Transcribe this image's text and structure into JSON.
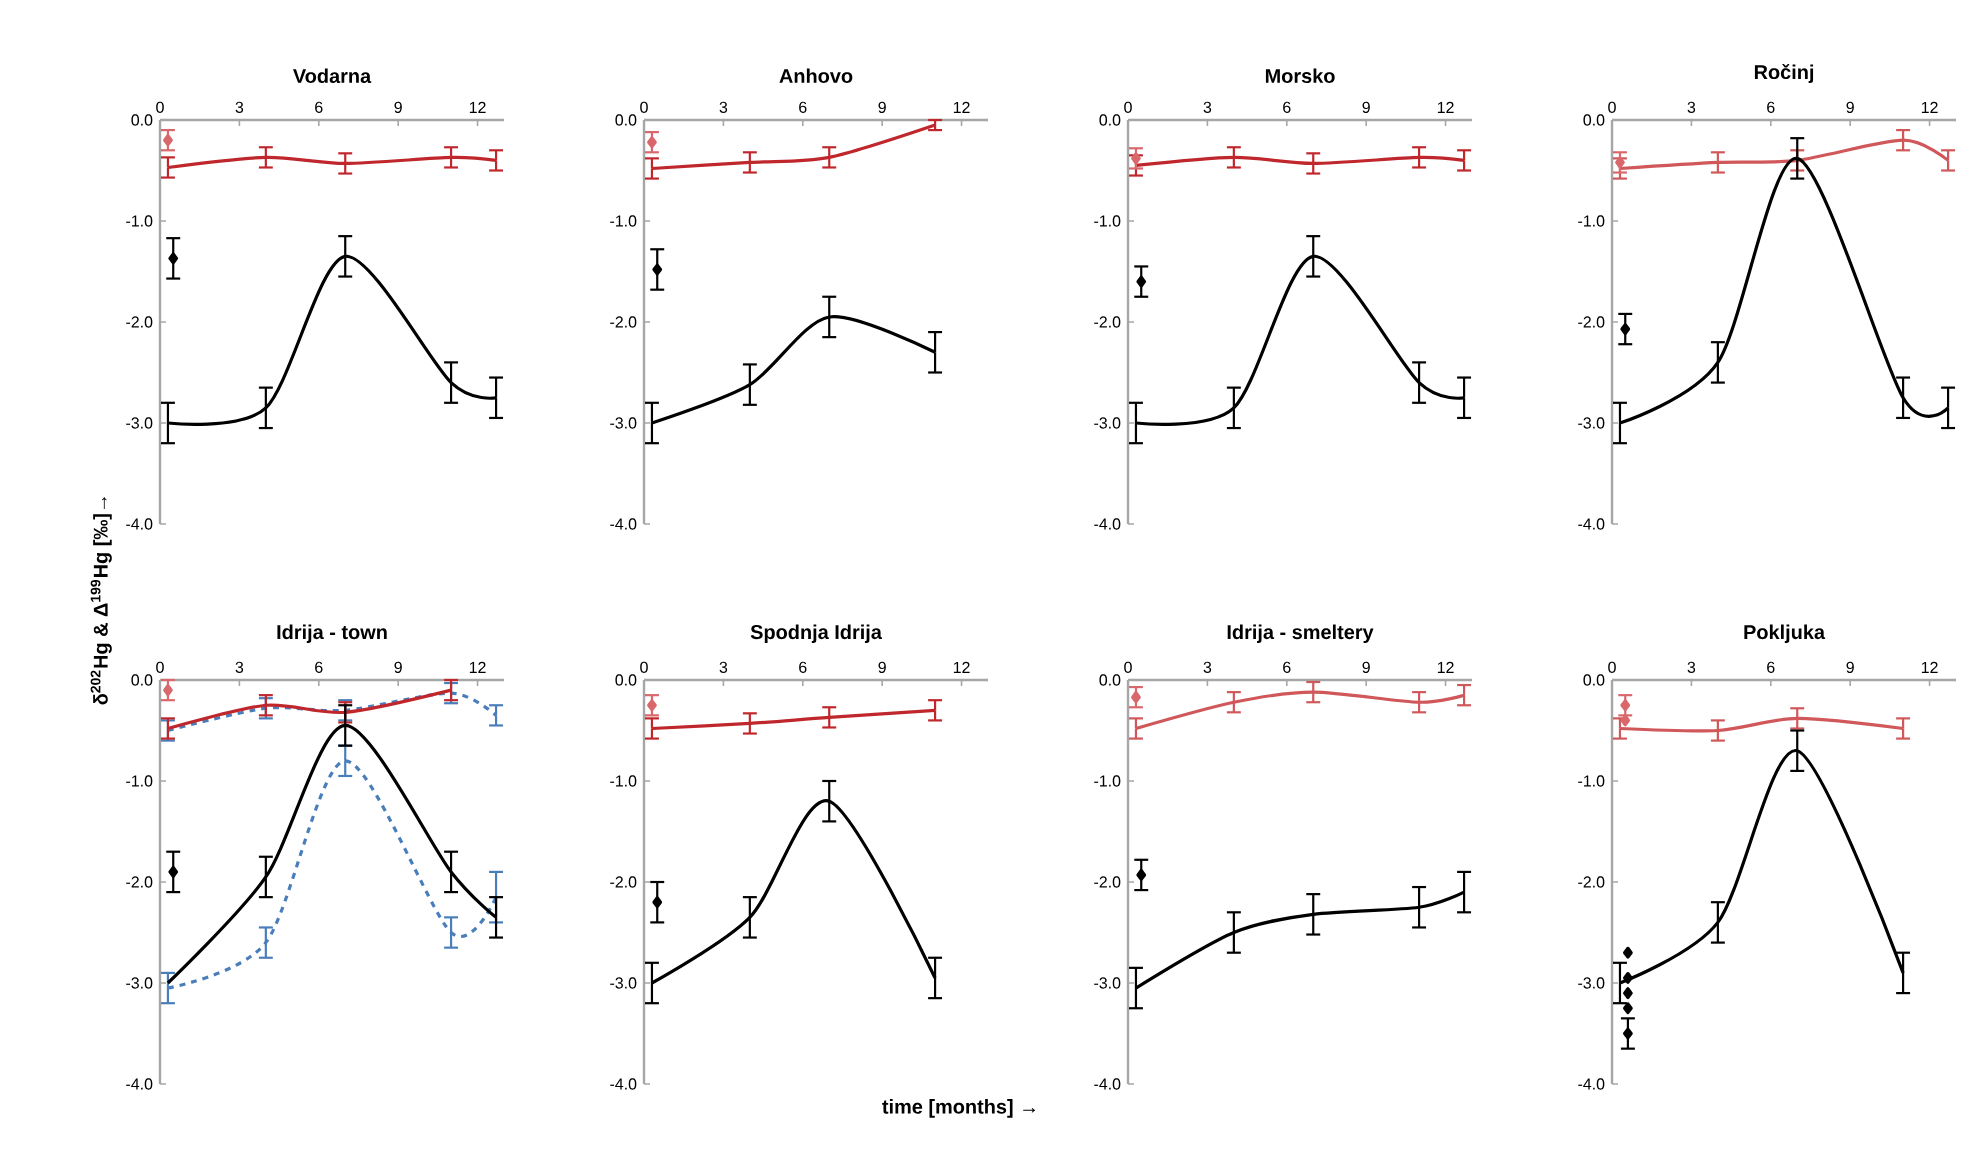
{
  "chart_data": [
    {
      "type": "line",
      "title": "Vodarna",
      "xlim": [
        0,
        13
      ],
      "ylim": [
        -4,
        0
      ],
      "xticks": [
        0,
        3,
        6,
        9,
        12
      ],
      "yticks": [
        {
          "value": 0,
          "label": "0.0"
        },
        {
          "value": -1,
          "label": "-1.0"
        },
        {
          "value": -2,
          "label": "-2.0"
        },
        {
          "value": -3,
          "label": "-3.0"
        },
        {
          "value": -4,
          "label": "-4.0"
        }
      ],
      "series": [
        {
          "type": "line",
          "color": "#c0272d",
          "x": [
            0.3,
            4,
            7,
            11,
            12.7
          ],
          "values": [
            -0.47,
            -0.37,
            -0.43,
            -0.37,
            -0.4
          ],
          "errors": [
            0.1,
            0.1,
            0.1,
            0.1,
            0.1
          ],
          "marker": "none",
          "line_style": "solid"
        },
        {
          "type": "line",
          "color": "#000000",
          "x": [
            0.3,
            4,
            7,
            11,
            12.7
          ],
          "values": [
            -3.0,
            -2.85,
            -1.35,
            -2.6,
            -2.75
          ],
          "errors": [
            0.2,
            0.2,
            0.2,
            0.2,
            0.2
          ],
          "marker": "none",
          "line_style": "solid"
        },
        {
          "type": "scatter",
          "color": "#d9686c",
          "x": [
            0.3
          ],
          "values": [
            -0.2
          ],
          "errors": [
            0.1
          ],
          "marker": "diamond"
        },
        {
          "type": "scatter",
          "color": "#000000",
          "x": [
            0.5
          ],
          "values": [
            -1.37
          ],
          "errors": [
            0.2
          ],
          "marker": "diamond"
        }
      ]
    },
    {
      "type": "line",
      "title": "Anhovo",
      "xlim": [
        0,
        13
      ],
      "ylim": [
        -4,
        0
      ],
      "xticks": [
        0,
        3,
        6,
        9,
        12
      ],
      "yticks": [
        {
          "value": 0,
          "label": "0.0"
        },
        {
          "value": -1,
          "label": "-1.0"
        },
        {
          "value": -2,
          "label": "-2.0"
        },
        {
          "value": -3,
          "label": "-3.0"
        },
        {
          "value": -4,
          "label": "-4.0"
        }
      ],
      "series": [
        {
          "type": "line",
          "color": "#c0272d",
          "x": [
            0.3,
            4,
            7,
            11
          ],
          "values": [
            -0.48,
            -0.42,
            -0.37,
            -0.05
          ],
          "errors": [
            0.1,
            0.1,
            0.1,
            0.05
          ],
          "marker": "none",
          "line_style": "solid"
        },
        {
          "type": "line",
          "color": "#000000",
          "x": [
            0.3,
            4,
            7,
            11
          ],
          "values": [
            -3.0,
            -2.62,
            -1.95,
            -2.3
          ],
          "errors": [
            0.2,
            0.2,
            0.2,
            0.2
          ],
          "marker": "none",
          "line_style": "solid"
        },
        {
          "type": "scatter",
          "color": "#d9686c",
          "x": [
            0.3
          ],
          "values": [
            -0.22
          ],
          "errors": [
            0.1
          ],
          "marker": "diamond"
        },
        {
          "type": "scatter",
          "color": "#000000",
          "x": [
            0.5
          ],
          "values": [
            -1.48
          ],
          "errors": [
            0.2
          ],
          "marker": "diamond"
        }
      ]
    },
    {
      "type": "line",
      "title": "Morsko",
      "xlim": [
        0,
        13
      ],
      "ylim": [
        -4,
        0
      ],
      "xticks": [
        0,
        3,
        6,
        9,
        12
      ],
      "yticks": [
        {
          "value": 0,
          "label": "0.0"
        },
        {
          "value": -1,
          "label": "-1.0"
        },
        {
          "value": -2,
          "label": "-2.0"
        },
        {
          "value": -3,
          "label": "-3.0"
        },
        {
          "value": -4,
          "label": "-4.0"
        }
      ],
      "series": [
        {
          "type": "line",
          "color": "#c0272d",
          "x": [
            0.3,
            4,
            7,
            11,
            12.7
          ],
          "values": [
            -0.45,
            -0.37,
            -0.43,
            -0.37,
            -0.4
          ],
          "errors": [
            0.1,
            0.1,
            0.1,
            0.1,
            0.1
          ],
          "marker": "none",
          "line_style": "solid"
        },
        {
          "type": "line",
          "color": "#000000",
          "x": [
            0.3,
            4,
            7,
            11,
            12.7
          ],
          "values": [
            -3.0,
            -2.85,
            -1.35,
            -2.6,
            -2.75
          ],
          "errors": [
            0.2,
            0.2,
            0.2,
            0.2,
            0.2
          ],
          "marker": "none",
          "line_style": "solid"
        },
        {
          "type": "scatter",
          "color": "#d9686c",
          "x": [
            0.3
          ],
          "values": [
            -0.38
          ],
          "errors": [
            0.1
          ],
          "marker": "diamond"
        },
        {
          "type": "scatter",
          "color": "#000000",
          "x": [
            0.5
          ],
          "values": [
            -1.6
          ],
          "errors": [
            0.15
          ],
          "marker": "diamond"
        }
      ]
    },
    {
      "type": "line",
      "title": "Ročinj",
      "xlim": [
        0,
        13
      ],
      "ylim": [
        -4,
        0
      ],
      "xticks": [
        0,
        3,
        6,
        9,
        12
      ],
      "yticks": [
        {
          "value": 0,
          "label": "0.0"
        },
        {
          "value": -1,
          "label": "-1.0"
        },
        {
          "value": -2,
          "label": "-2.0"
        },
        {
          "value": -3,
          "label": "-3.0"
        },
        {
          "value": -4,
          "label": "-4.0"
        }
      ],
      "series": [
        {
          "type": "line",
          "color": "#d0575a",
          "x": [
            0.3,
            4,
            7,
            11,
            12.7
          ],
          "values": [
            -0.48,
            -0.42,
            -0.4,
            -0.2,
            -0.4
          ],
          "errors": [
            0.1,
            0.1,
            0.1,
            0.1,
            0.1
          ],
          "marker": "none",
          "line_style": "solid"
        },
        {
          "type": "line",
          "color": "#000000",
          "x": [
            0.3,
            4,
            7,
            11,
            12.7
          ],
          "values": [
            -3.0,
            -2.4,
            -0.38,
            -2.75,
            -2.85
          ],
          "errors": [
            0.2,
            0.2,
            0.2,
            0.2,
            0.2
          ],
          "marker": "none",
          "line_style": "solid"
        },
        {
          "type": "scatter",
          "color": "#d9686c",
          "x": [
            0.3
          ],
          "values": [
            -0.42
          ],
          "errors": [
            0.1
          ],
          "marker": "diamond"
        },
        {
          "type": "scatter",
          "color": "#000000",
          "x": [
            0.5
          ],
          "values": [
            -2.07
          ],
          "errors": [
            0.15
          ],
          "marker": "diamond"
        }
      ]
    },
    {
      "type": "line",
      "title": "Idrija - town",
      "ylabel": "δ$^{202}$Hg & Δ$^{199}$Hg [‰]→",
      "xlim": [
        0,
        13
      ],
      "ylim": [
        -4,
        0
      ],
      "xticks": [
        0,
        3,
        6,
        9,
        12
      ],
      "yticks": [
        {
          "value": 0,
          "label": "0.0"
        },
        {
          "value": -1,
          "label": "-1.0"
        },
        {
          "value": -2,
          "label": "-2.0"
        },
        {
          "value": -3,
          "label": "-3.0"
        },
        {
          "value": -4,
          "label": "-4.0"
        }
      ],
      "series": [
        {
          "type": "line",
          "color": "#4a7ebb",
          "x": [
            0.3,
            4,
            7,
            11,
            12.7
          ],
          "values": [
            -0.5,
            -0.28,
            -0.3,
            -0.13,
            -0.35
          ],
          "errors": [
            0.1,
            0.1,
            0.1,
            0.1,
            0.1
          ],
          "marker": "none",
          "line_style": "dashed"
        },
        {
          "type": "line",
          "color": "#4a7ebb",
          "x": [
            0.3,
            4,
            7,
            11,
            12.7
          ],
          "values": [
            -3.05,
            -2.6,
            -0.8,
            -2.5,
            -2.15
          ],
          "errors": [
            0.15,
            0.15,
            0.15,
            0.15,
            0.25
          ],
          "marker": "none",
          "line_style": "dashed"
        },
        {
          "type": "line",
          "color": "#c0272d",
          "x": [
            0.3,
            4,
            7,
            11
          ],
          "values": [
            -0.48,
            -0.25,
            -0.32,
            -0.1
          ],
          "errors": [
            0.1,
            0.1,
            0.1,
            0.1
          ],
          "marker": "none",
          "line_style": "solid"
        },
        {
          "type": "line",
          "color": "#000000",
          "x": [
            0.3,
            4,
            7,
            11,
            12.7
          ],
          "values": [
            -3.0,
            -1.95,
            -0.45,
            -1.9,
            -2.35
          ],
          "errors": [
            null,
            0.2,
            0.2,
            0.2,
            0.2
          ],
          "marker": "none",
          "line_style": "solid"
        },
        {
          "type": "scatter",
          "color": "#d9686c",
          "x": [
            0.3
          ],
          "values": [
            -0.1
          ],
          "errors": [
            0.1
          ],
          "marker": "diamond"
        },
        {
          "type": "scatter",
          "color": "#000000",
          "x": [
            0.5
          ],
          "values": [
            -1.9
          ],
          "errors": [
            0.2
          ],
          "marker": "diamond"
        }
      ]
    },
    {
      "type": "line",
      "title": "Spodnja Idrija",
      "xlabel": "time [months] →",
      "xlim": [
        0,
        13
      ],
      "ylim": [
        -4,
        0
      ],
      "xticks": [
        0,
        3,
        6,
        9,
        12
      ],
      "yticks": [
        {
          "value": 0,
          "label": "0.0"
        },
        {
          "value": -1,
          "label": "-1.0"
        },
        {
          "value": -2,
          "label": "-2.0"
        },
        {
          "value": -3,
          "label": "-3.0"
        },
        {
          "value": -4,
          "label": "-4.0"
        }
      ],
      "series": [
        {
          "type": "line",
          "color": "#c0272d",
          "x": [
            0.3,
            4,
            7,
            11
          ],
          "values": [
            -0.48,
            -0.43,
            -0.37,
            -0.3
          ],
          "errors": [
            0.1,
            0.1,
            0.1,
            0.1
          ],
          "marker": "none",
          "line_style": "solid"
        },
        {
          "type": "line",
          "color": "#000000",
          "x": [
            0.3,
            4,
            7,
            11
          ],
          "values": [
            -3.0,
            -2.35,
            -1.2,
            -2.95
          ],
          "errors": [
            0.2,
            0.2,
            0.2,
            0.2
          ],
          "marker": "none",
          "line_style": "solid"
        },
        {
          "type": "scatter",
          "color": "#d9686c",
          "x": [
            0.3
          ],
          "values": [
            -0.25
          ],
          "errors": [
            0.1
          ],
          "marker": "diamond"
        },
        {
          "type": "scatter",
          "color": "#000000",
          "x": [
            0.5
          ],
          "values": [
            -2.2
          ],
          "errors": [
            0.2
          ],
          "marker": "diamond"
        }
      ]
    },
    {
      "type": "line",
      "title": "Idrija - smeltery",
      "xlim": [
        0,
        13
      ],
      "ylim": [
        -4,
        0
      ],
      "xticks": [
        0,
        3,
        6,
        9,
        12
      ],
      "yticks": [
        {
          "value": 0,
          "label": "0.0"
        },
        {
          "value": -1,
          "label": "-1.0"
        },
        {
          "value": -2,
          "label": "-2.0"
        },
        {
          "value": -3,
          "label": "-3.0"
        },
        {
          "value": -4,
          "label": "-4.0"
        }
      ],
      "series": [
        {
          "type": "line",
          "color": "#d0575a",
          "x": [
            0.3,
            4,
            7,
            11,
            12.7
          ],
          "values": [
            -0.48,
            -0.22,
            -0.12,
            -0.22,
            -0.15
          ],
          "errors": [
            0.1,
            0.1,
            0.1,
            0.1,
            0.1
          ],
          "marker": "none",
          "line_style": "solid"
        },
        {
          "type": "line",
          "color": "#000000",
          "x": [
            0.3,
            4,
            7,
            11,
            12.7
          ],
          "values": [
            -3.05,
            -2.5,
            -2.32,
            -2.25,
            -2.1
          ],
          "errors": [
            0.2,
            0.2,
            0.2,
            0.2,
            0.2
          ],
          "marker": "none",
          "line_style": "solid"
        },
        {
          "type": "scatter",
          "color": "#d9686c",
          "x": [
            0.3
          ],
          "values": [
            -0.17
          ],
          "errors": [
            0.1
          ],
          "marker": "diamond"
        },
        {
          "type": "scatter",
          "color": "#000000",
          "x": [
            0.5
          ],
          "values": [
            -1.93
          ],
          "errors": [
            0.15
          ],
          "marker": "diamond"
        }
      ]
    },
    {
      "type": "line",
      "title": "Pokljuka",
      "xlim": [
        0,
        13
      ],
      "ylim": [
        -4,
        0
      ],
      "xticks": [
        0,
        3,
        6,
        9,
        12
      ],
      "yticks": [
        {
          "value": 0,
          "label": "0.0"
        },
        {
          "value": -1,
          "label": "-1.0"
        },
        {
          "value": -2,
          "label": "-2.0"
        },
        {
          "value": -3,
          "label": "-3.0"
        },
        {
          "value": -4,
          "label": "-4.0"
        }
      ],
      "series": [
        {
          "type": "line",
          "color": "#d0575a",
          "x": [
            0.3,
            4,
            7,
            11
          ],
          "values": [
            -0.48,
            -0.5,
            -0.38,
            -0.48
          ],
          "errors": [
            0.1,
            0.1,
            0.1,
            0.1
          ],
          "marker": "none",
          "line_style": "solid"
        },
        {
          "type": "line",
          "color": "#000000",
          "x": [
            0.3,
            4,
            7,
            11
          ],
          "values": [
            -3.0,
            -2.4,
            -0.7,
            -2.9
          ],
          "errors": [
            0.2,
            0.2,
            0.2,
            0.2
          ],
          "marker": "none",
          "line_style": "solid"
        },
        {
          "type": "scatter",
          "color": "#d9686c",
          "x": [
            0.5,
            0.5
          ],
          "values": [
            -0.25,
            -0.4
          ],
          "errors": [
            0.1,
            null
          ],
          "marker": "diamond"
        },
        {
          "type": "scatter",
          "color": "#000000",
          "x": [
            0.6,
            0.6,
            0.6,
            0.6,
            0.6
          ],
          "values": [
            -2.7,
            -2.95,
            -3.1,
            -3.25,
            -3.5
          ],
          "errors": [
            null,
            null,
            null,
            null,
            0.15
          ],
          "marker": "diamond"
        }
      ]
    }
  ]
}
